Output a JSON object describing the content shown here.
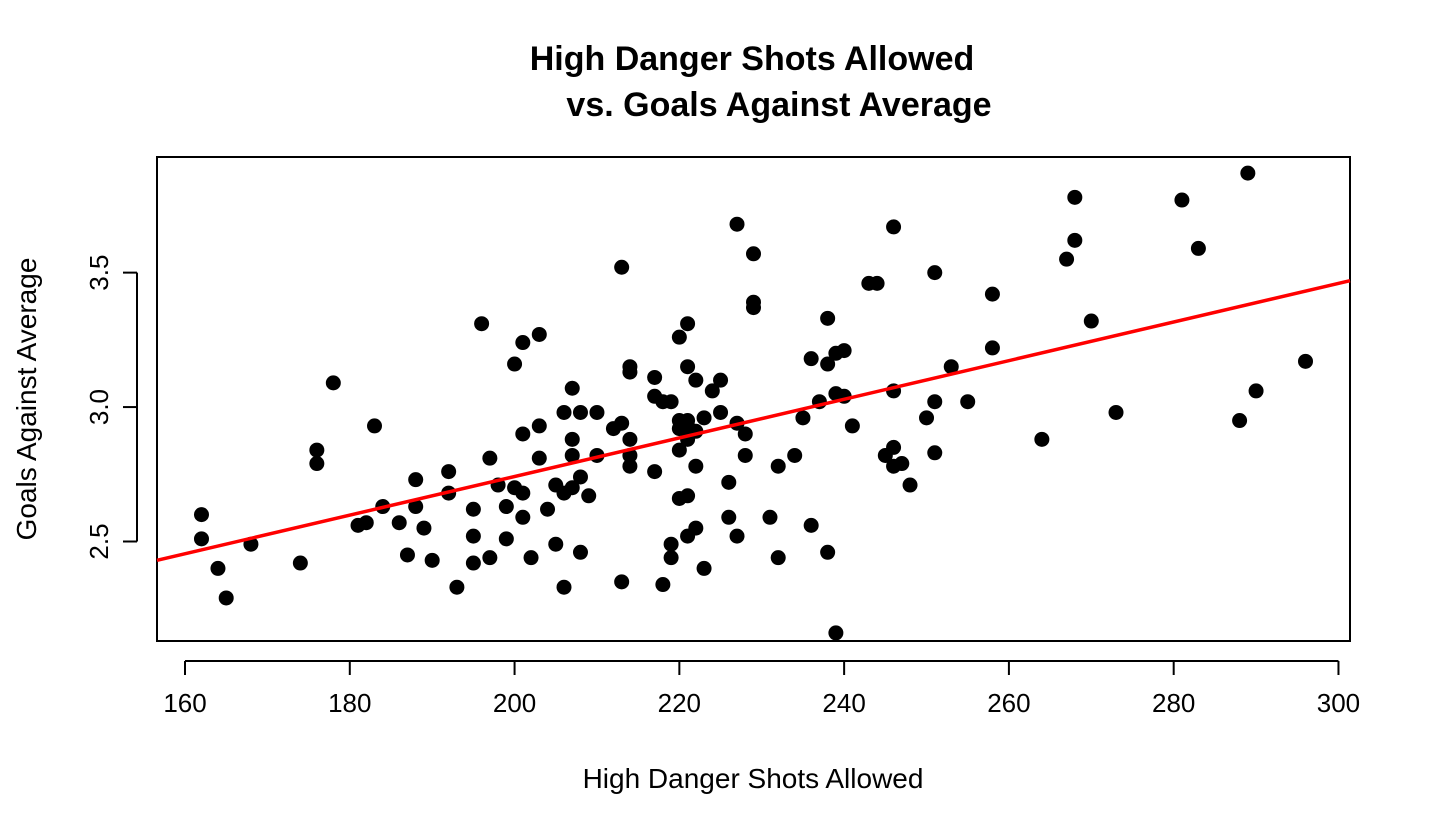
{
  "chart_data": {
    "type": "scatter",
    "title_line1": "High Danger Shots Allowed",
    "title_line2": "vs. Goals Against Average",
    "xlabel": "High Danger Shots Allowed",
    "ylabel": "Goals Against Average",
    "xlim": [
      156.6,
      301.4
    ],
    "ylim": [
      2.13,
      3.93
    ],
    "xticks": [
      160,
      180,
      200,
      220,
      240,
      260,
      280,
      300
    ],
    "yticks": [
      2.5,
      3.0,
      3.5
    ],
    "xtick_labels": [
      "160",
      "180",
      "200",
      "220",
      "240",
      "260",
      "280",
      "300"
    ],
    "ytick_labels": [
      "2.5",
      "3.0",
      "3.5"
    ],
    "point_color": "#000000",
    "regression_line": {
      "color": "#ff0000",
      "x": [
        156.6,
        301.4
      ],
      "y": [
        2.43,
        3.47
      ]
    },
    "points": [
      [
        162,
        2.6
      ],
      [
        162,
        2.51
      ],
      [
        164,
        2.4
      ],
      [
        165,
        2.29
      ],
      [
        168,
        2.49
      ],
      [
        174,
        2.42
      ],
      [
        176,
        2.84
      ],
      [
        176,
        2.79
      ],
      [
        178,
        3.09
      ],
      [
        181,
        2.56
      ],
      [
        182,
        2.57
      ],
      [
        183,
        2.93
      ],
      [
        184,
        2.63
      ],
      [
        186,
        2.57
      ],
      [
        187,
        2.45
      ],
      [
        188,
        2.73
      ],
      [
        188,
        2.63
      ],
      [
        189,
        2.55
      ],
      [
        190,
        2.43
      ],
      [
        192,
        2.76
      ],
      [
        192,
        2.68
      ],
      [
        193,
        2.33
      ],
      [
        195,
        2.62
      ],
      [
        195,
        2.52
      ],
      [
        195,
        2.42
      ],
      [
        196,
        3.31
      ],
      [
        197,
        2.81
      ],
      [
        197,
        2.44
      ],
      [
        198,
        2.71
      ],
      [
        199,
        2.63
      ],
      [
        199,
        2.51
      ],
      [
        200,
        3.16
      ],
      [
        200,
        2.7
      ],
      [
        201,
        3.24
      ],
      [
        201,
        2.9
      ],
      [
        201,
        2.68
      ],
      [
        201,
        2.59
      ],
      [
        202,
        2.44
      ],
      [
        203,
        3.27
      ],
      [
        203,
        2.93
      ],
      [
        203,
        2.81
      ],
      [
        204,
        2.62
      ],
      [
        205,
        2.71
      ],
      [
        205,
        2.49
      ],
      [
        206,
        2.98
      ],
      [
        206,
        2.68
      ],
      [
        206,
        2.33
      ],
      [
        207,
        3.07
      ],
      [
        207,
        2.88
      ],
      [
        207,
        2.82
      ],
      [
        207,
        2.7
      ],
      [
        208,
        2.98
      ],
      [
        208,
        2.74
      ],
      [
        208,
        2.46
      ],
      [
        209,
        2.67
      ],
      [
        210,
        2.98
      ],
      [
        210,
        2.82
      ],
      [
        212,
        2.92
      ],
      [
        213,
        3.52
      ],
      [
        213,
        2.94
      ],
      [
        213,
        2.35
      ],
      [
        214,
        3.15
      ],
      [
        214,
        3.13
      ],
      [
        214,
        2.88
      ],
      [
        214,
        2.82
      ],
      [
        214,
        2.78
      ],
      [
        217,
        3.11
      ],
      [
        217,
        3.04
      ],
      [
        217,
        2.76
      ],
      [
        218,
        3.02
      ],
      [
        218,
        2.34
      ],
      [
        219,
        3.02
      ],
      [
        219,
        2.49
      ],
      [
        219,
        2.44
      ],
      [
        220,
        3.26
      ],
      [
        220,
        2.95
      ],
      [
        220,
        2.92
      ],
      [
        220,
        2.84
      ],
      [
        220,
        2.66
      ],
      [
        221,
        3.31
      ],
      [
        221,
        3.15
      ],
      [
        221,
        2.95
      ],
      [
        221,
        2.93
      ],
      [
        221,
        2.88
      ],
      [
        221,
        2.67
      ],
      [
        221,
        2.52
      ],
      [
        222,
        3.1
      ],
      [
        222,
        2.91
      ],
      [
        222,
        2.78
      ],
      [
        222,
        2.55
      ],
      [
        223,
        2.96
      ],
      [
        223,
        2.4
      ],
      [
        224,
        3.06
      ],
      [
        225,
        3.1
      ],
      [
        225,
        2.98
      ],
      [
        226,
        2.72
      ],
      [
        226,
        2.59
      ],
      [
        227,
        3.68
      ],
      [
        227,
        2.94
      ],
      [
        227,
        2.52
      ],
      [
        228,
        2.9
      ],
      [
        228,
        2.82
      ],
      [
        229,
        3.57
      ],
      [
        229,
        3.39
      ],
      [
        229,
        3.37
      ],
      [
        231,
        2.59
      ],
      [
        232,
        2.78
      ],
      [
        232,
        2.44
      ],
      [
        234,
        2.82
      ],
      [
        235,
        2.96
      ],
      [
        236,
        3.18
      ],
      [
        236,
        2.56
      ],
      [
        237,
        3.02
      ],
      [
        238,
        3.33
      ],
      [
        238,
        3.16
      ],
      [
        238,
        2.46
      ],
      [
        239,
        3.2
      ],
      [
        239,
        3.05
      ],
      [
        239,
        2.16
      ],
      [
        240,
        3.21
      ],
      [
        240,
        3.04
      ],
      [
        241,
        2.93
      ],
      [
        243,
        3.46
      ],
      [
        244,
        3.46
      ],
      [
        245,
        2.82
      ],
      [
        246,
        3.67
      ],
      [
        246,
        3.06
      ],
      [
        246,
        2.85
      ],
      [
        246,
        2.78
      ],
      [
        247,
        2.79
      ],
      [
        248,
        2.71
      ],
      [
        250,
        2.96
      ],
      [
        251,
        3.5
      ],
      [
        251,
        3.02
      ],
      [
        251,
        2.83
      ],
      [
        253,
        3.15
      ],
      [
        255,
        3.02
      ],
      [
        258,
        3.42
      ],
      [
        258,
        3.22
      ],
      [
        264,
        2.88
      ],
      [
        267,
        3.55
      ],
      [
        268,
        3.78
      ],
      [
        268,
        3.62
      ],
      [
        270,
        3.32
      ],
      [
        273,
        2.98
      ],
      [
        281,
        3.77
      ],
      [
        283,
        3.59
      ],
      [
        288,
        2.95
      ],
      [
        289,
        3.87
      ],
      [
        290,
        3.06
      ],
      [
        296,
        3.17
      ]
    ]
  }
}
